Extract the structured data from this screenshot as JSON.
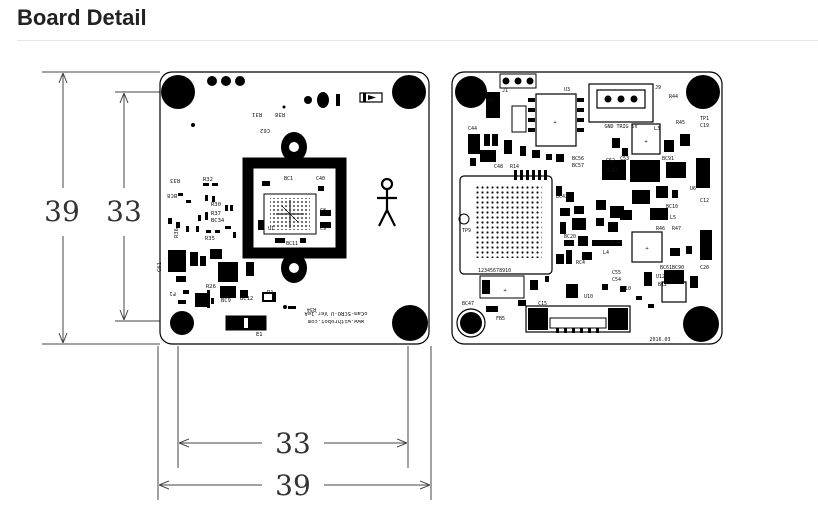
{
  "page": {
    "title": "Board Detail"
  },
  "dimensions": {
    "height_outer": "39",
    "height_inner": "33",
    "width_inner": "33",
    "width_outer": "39"
  },
  "front_board": {
    "version_text": "oCam-5CRO-U Ver.1eA",
    "website_text": "www.withrobot.com",
    "labels": [
      "R38",
      "R31",
      "C8",
      "C9",
      "L1",
      "E1",
      "BC1",
      "BC9",
      "BC11",
      "BC12",
      "R1",
      "C40",
      "R34",
      "C62",
      "R37",
      "R26",
      "R32",
      "R36",
      "R33",
      "BC8",
      "R35",
      "F1",
      "U1",
      "BC34",
      "R30",
      "C61"
    ]
  },
  "back_board": {
    "date_text": "2016.03",
    "connector_label": "GND TRIG 5V",
    "labels": [
      "J1",
      "J9",
      "U3",
      "U4",
      "U6",
      "U10",
      "U12",
      "C44",
      "C52",
      "C53",
      "BC56",
      "BC57",
      "BC42",
      "BC43",
      "BC91",
      "BC10",
      "BC61",
      "TP1",
      "TP9",
      "C19",
      "C12",
      "C20",
      "C15",
      "C54",
      "C55",
      "C10",
      "R44",
      "R45",
      "R46",
      "R47",
      "R14",
      "C48",
      "L4",
      "L5",
      "L2",
      "L3",
      "BC44",
      "BC20",
      "B12",
      "FB5",
      "RC4",
      "PB1"
    ]
  },
  "colors": {
    "ink": "#000000",
    "dimension_line": "#444444",
    "header_text": "#222222",
    "divider": "#e5e5e5"
  }
}
